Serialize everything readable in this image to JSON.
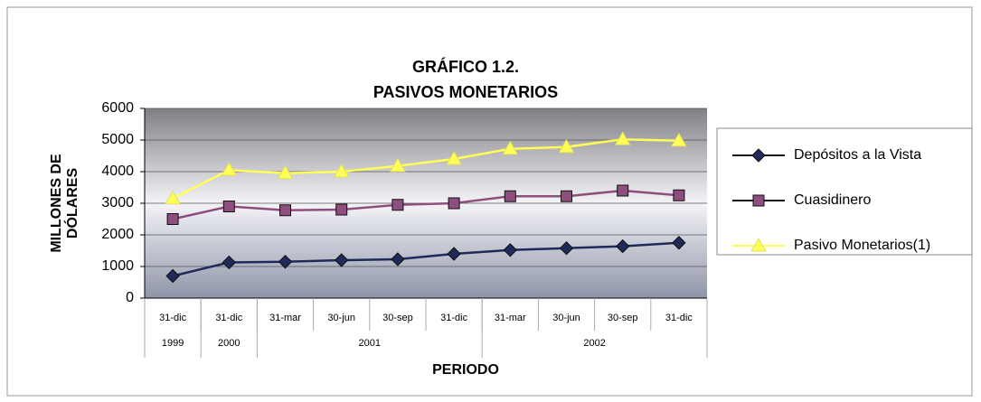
{
  "chart_data": {
    "type": "line",
    "title": "GRÁFICO 1.2.",
    "subtitle": "PASIVOS MONETARIOS",
    "y_label": "MILLONES DE DÓLARES",
    "x_label": "PERIODO",
    "categories": [
      "31-dic",
      "31-dic",
      "31-mar",
      "30-jun",
      "30-sep",
      "31-dic",
      "31-mar",
      "30-jun",
      "30-sep",
      "31-dic"
    ],
    "years": [
      "1999",
      "2000",
      "2001",
      null,
      null,
      null,
      "2002",
      null,
      null,
      null
    ],
    "series": [
      {
        "name": "Depósitos a la Vista",
        "color": "#1f2a5a",
        "marker": "diamond",
        "values": [
          700,
          1130,
          1150,
          1200,
          1230,
          1400,
          1520,
          1580,
          1640,
          1750
        ]
      },
      {
        "name": "Cuasidinero",
        "color": "#8e4f7e",
        "marker": "square",
        "values": [
          2500,
          2900,
          2780,
          2800,
          2950,
          3000,
          3220,
          3220,
          3400,
          3250
        ]
      },
      {
        "name": "Pasivo Monetarios(1)",
        "color": "#ffff55",
        "marker": "triangle",
        "values": [
          3150,
          4050,
          3950,
          4000,
          4180,
          4400,
          4720,
          4780,
          5020,
          4980
        ]
      }
    ],
    "ylim": [
      0,
      6000
    ],
    "yticks": [
      0,
      1000,
      2000,
      3000,
      4000,
      5000,
      6000
    ],
    "grid": true,
    "legend": "right"
  }
}
